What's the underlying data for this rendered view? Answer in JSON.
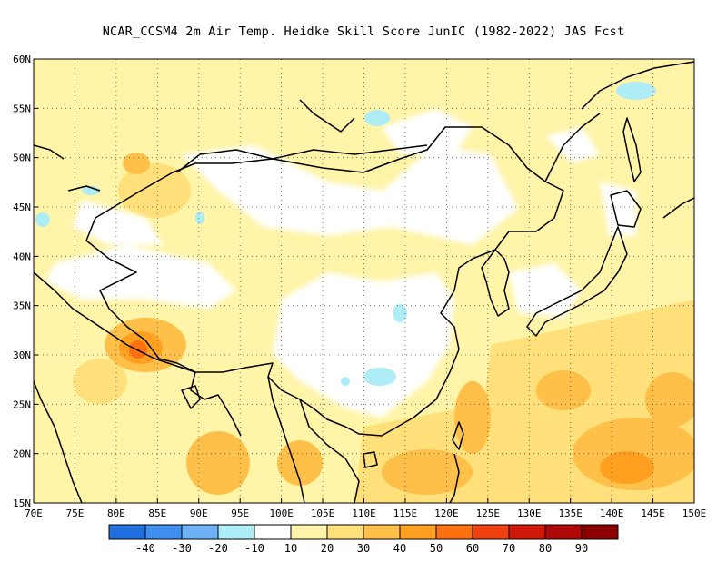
{
  "title": "NCAR_CCSM4  2m Air Temp. Heidke Skill Score JunIC (1982-2022) JAS Fcst",
  "map": {
    "lon_range": [
      70,
      150
    ],
    "lat_range": [
      15,
      60
    ],
    "lon_ticks": [
      "70E",
      "75E",
      "80E",
      "85E",
      "90E",
      "95E",
      "100E",
      "105E",
      "110E",
      "115E",
      "120E",
      "125E",
      "130E",
      "135E",
      "140E",
      "145E",
      "150E"
    ],
    "lat_ticks": [
      "15N",
      "20N",
      "25N",
      "30N",
      "35N",
      "40N",
      "45N",
      "50N",
      "55N",
      "60N"
    ]
  },
  "colorbar": {
    "colors": [
      "#1f6fe0",
      "#3f8ff0",
      "#6eb2f6",
      "#aeecf6",
      "#ffffff",
      "#fff4a8",
      "#ffe07a",
      "#ffc04a",
      "#ffa020",
      "#ff7010",
      "#f04010",
      "#d01808",
      "#b00808",
      "#8c0000"
    ],
    "labels": [
      "-40",
      "-30",
      "-20",
      "-10",
      "10",
      "20",
      "30",
      "40",
      "50",
      "60",
      "70",
      "80",
      "90"
    ]
  }
}
